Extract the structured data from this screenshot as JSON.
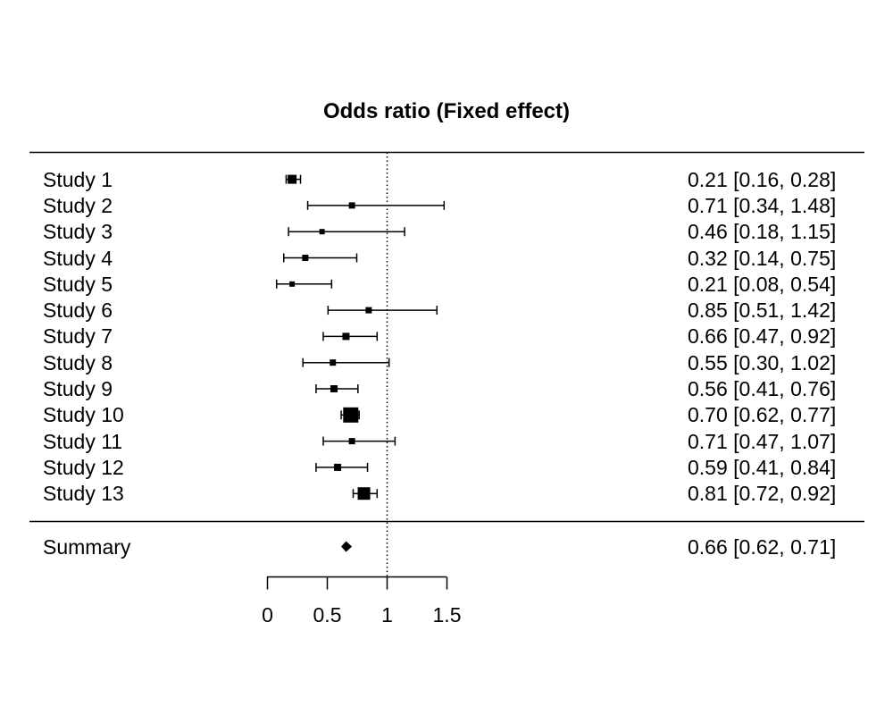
{
  "title": "Odds ratio (Fixed effect)",
  "colors": {
    "foreground": "#000000",
    "background": "#ffffff"
  },
  "chart_data": {
    "type": "forest",
    "title": "Odds ratio (Fixed effect)",
    "effect_measure": "Odds ratio",
    "model": "Fixed effect",
    "x_axis": {
      "range": [
        0,
        1.5
      ],
      "ticks": [
        0,
        0.5,
        1,
        1.5
      ],
      "tick_labels": [
        "0",
        "0.5",
        "1",
        "1.5"
      ],
      "reference_line": 1,
      "reference_line_style": "dotted"
    },
    "studies": [
      {
        "label": "Study 1",
        "or": 0.21,
        "ci_lower": 0.16,
        "ci_upper": 0.28,
        "estimate_text": "0.21 [0.16, 0.28]",
        "marker_size_px": 10
      },
      {
        "label": "Study 2",
        "or": 0.71,
        "ci_lower": 0.34,
        "ci_upper": 1.48,
        "estimate_text": "0.71 [0.34, 1.48]",
        "marker_size_px": 7
      },
      {
        "label": "Study 3",
        "or": 0.46,
        "ci_lower": 0.18,
        "ci_upper": 1.15,
        "estimate_text": "0.46 [0.18, 1.15]",
        "marker_size_px": 6
      },
      {
        "label": "Study 4",
        "or": 0.32,
        "ci_lower": 0.14,
        "ci_upper": 0.75,
        "estimate_text": "0.32 [0.14, 0.75]",
        "marker_size_px": 7
      },
      {
        "label": "Study 5",
        "or": 0.21,
        "ci_lower": 0.08,
        "ci_upper": 0.54,
        "estimate_text": "0.21 [0.08, 0.54]",
        "marker_size_px": 6
      },
      {
        "label": "Study 6",
        "or": 0.85,
        "ci_lower": 0.51,
        "ci_upper": 1.42,
        "estimate_text": "0.85 [0.51, 1.42]",
        "marker_size_px": 7
      },
      {
        "label": "Study 7",
        "or": 0.66,
        "ci_lower": 0.47,
        "ci_upper": 0.92,
        "estimate_text": "0.66 [0.47, 0.92]",
        "marker_size_px": 8
      },
      {
        "label": "Study 8",
        "or": 0.55,
        "ci_lower": 0.3,
        "ci_upper": 1.02,
        "estimate_text": "0.55 [0.30, 1.02]",
        "marker_size_px": 7
      },
      {
        "label": "Study 9",
        "or": 0.56,
        "ci_lower": 0.41,
        "ci_upper": 0.76,
        "estimate_text": "0.56 [0.41, 0.76]",
        "marker_size_px": 8
      },
      {
        "label": "Study 10",
        "or": 0.7,
        "ci_lower": 0.62,
        "ci_upper": 0.77,
        "estimate_text": "0.70 [0.62, 0.77]",
        "marker_size_px": 17
      },
      {
        "label": "Study 11",
        "or": 0.71,
        "ci_lower": 0.47,
        "ci_upper": 1.07,
        "estimate_text": "0.71 [0.47, 1.07]",
        "marker_size_px": 7
      },
      {
        "label": "Study 12",
        "or": 0.59,
        "ci_lower": 0.41,
        "ci_upper": 0.84,
        "estimate_text": "0.59 [0.41, 0.84]",
        "marker_size_px": 8
      },
      {
        "label": "Study 13",
        "or": 0.81,
        "ci_lower": 0.72,
        "ci_upper": 0.92,
        "estimate_text": "0.81 [0.72, 0.92]",
        "marker_size_px": 14
      }
    ],
    "summary": {
      "label": "Summary",
      "or": 0.66,
      "ci_lower": 0.62,
      "ci_upper": 0.71,
      "estimate_text": "0.66 [0.62, 0.71]"
    }
  }
}
